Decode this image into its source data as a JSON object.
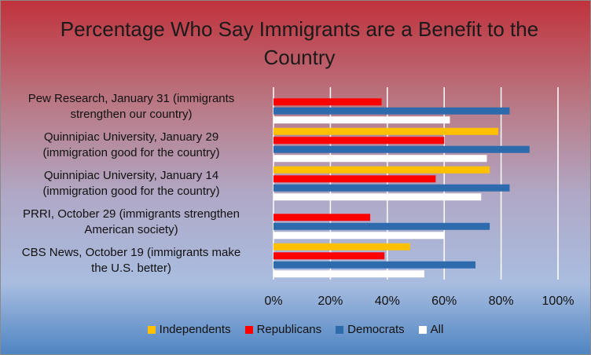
{
  "chart_data": {
    "type": "bar",
    "orientation": "horizontal",
    "title": "Percentage Who Say Immigrants are a Benefit to the Country",
    "categories": [
      "Pew Research, January 31 (immigrants strengthen our country)",
      "Quinnipiac University, January 29 (immigration good for the country)",
      "Quinnipiac University, January 14 (immigration good for the country)",
      "PRRI, October 29 (immigrants strengthen American society)",
      "CBS News, October 19 (immigrants make the U.S. better)"
    ],
    "category_lines": [
      [
        "Pew Research, January 31 (immigrants",
        "strengthen our country)"
      ],
      [
        "Quinnipiac University, January 29",
        "(immigration good for the country)"
      ],
      [
        "Quinnipiac University, January 14",
        "(immigration good for the country)"
      ],
      [
        "PRRI, October 29 (immigrants strengthen",
        "American society)"
      ],
      [
        "CBS News, October 19 (immigrants make",
        "the U.S. better)"
      ]
    ],
    "series": [
      {
        "name": "Independents",
        "color": "#ffc000",
        "values": [
          null,
          79,
          76,
          null,
          48
        ]
      },
      {
        "name": "Republicans",
        "color": "#ff0000",
        "values": [
          38,
          60,
          57,
          34,
          39
        ]
      },
      {
        "name": "Democrats",
        "color": "#2e6bad",
        "values": [
          83,
          90,
          83,
          76,
          71
        ]
      },
      {
        "name": "All",
        "color": "#ffffff",
        "values": [
          62,
          75,
          73,
          60,
          53
        ]
      }
    ],
    "x_ticks": [
      "0%",
      "20%",
      "40%",
      "60%",
      "80%",
      "100%"
    ],
    "xlim": [
      0,
      100
    ],
    "grid": true,
    "legend_position": "bottom"
  }
}
